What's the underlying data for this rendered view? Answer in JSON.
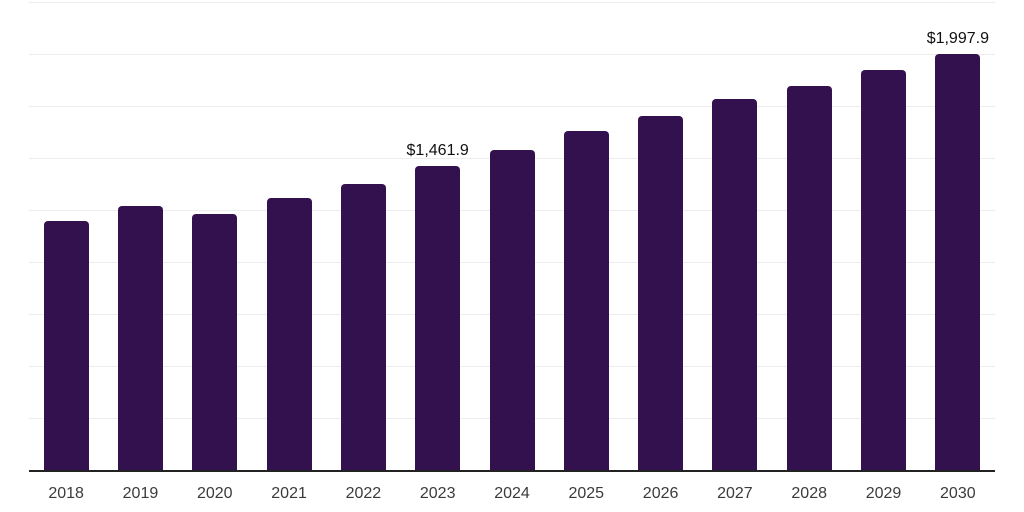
{
  "chart_data": {
    "type": "bar",
    "title": "",
    "xlabel": "",
    "ylabel": "",
    "categories": [
      "2018",
      "2019",
      "2020",
      "2021",
      "2022",
      "2023",
      "2024",
      "2025",
      "2026",
      "2027",
      "2028",
      "2029",
      "2030"
    ],
    "values": [
      1199,
      1271,
      1232,
      1308,
      1376,
      1461.9,
      1540,
      1628,
      1702,
      1783,
      1848,
      1925,
      1997.9
    ],
    "data_labels": {
      "2023": "$1,461.9",
      "2030": "$1,997.9"
    },
    "ylim": [
      0,
      2250
    ],
    "grid_interval": 250,
    "grid": true,
    "legend": false,
    "colors": {
      "bar": "#33114e",
      "grid": "#ededed",
      "axis": "#222222",
      "tick_text": "#3b3b3b",
      "label_text": "#101010",
      "background": "#ffffff"
    }
  }
}
